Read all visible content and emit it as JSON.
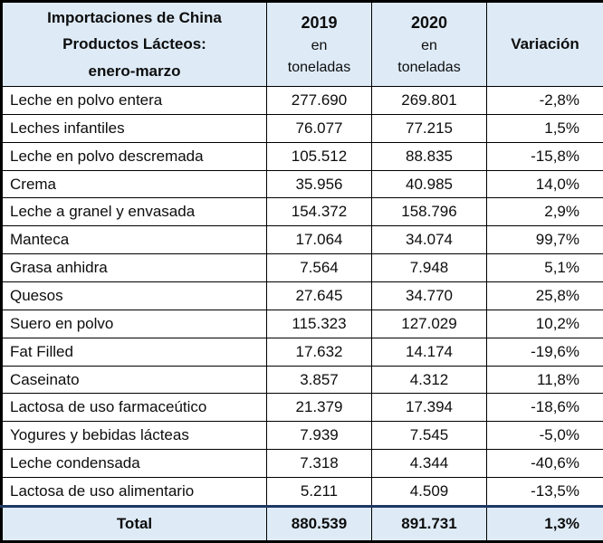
{
  "chart_data": {
    "type": "table",
    "title_lines": [
      "Importaciones de China",
      "Productos Lácteos:",
      "enero-marzo"
    ],
    "columns": [
      {
        "year": "2019",
        "unit_line1": "en",
        "unit_line2": "toneladas"
      },
      {
        "year": "2020",
        "unit_line1": "en",
        "unit_line2": "toneladas"
      },
      {
        "label": "Variación"
      }
    ],
    "rows": [
      {
        "name": "Leche en polvo entera",
        "y2019": "277.690",
        "y2020": "269.801",
        "var": "-2,8%"
      },
      {
        "name": "Leches infantiles",
        "y2019": "76.077",
        "y2020": "77.215",
        "var": "1,5%"
      },
      {
        "name": "Leche en polvo descremada",
        "y2019": "105.512",
        "y2020": "88.835",
        "var": "-15,8%"
      },
      {
        "name": "Crema",
        "y2019": "35.956",
        "y2020": "40.985",
        "var": "14,0%"
      },
      {
        "name": "Leche a granel y envasada",
        "y2019": "154.372",
        "y2020": "158.796",
        "var": "2,9%"
      },
      {
        "name": "Manteca",
        "y2019": "17.064",
        "y2020": "34.074",
        "var": "99,7%"
      },
      {
        "name": "Grasa anhidra",
        "y2019": "7.564",
        "y2020": "7.948",
        "var": "5,1%"
      },
      {
        "name": "Quesos",
        "y2019": "27.645",
        "y2020": "34.770",
        "var": "25,8%"
      },
      {
        "name": "Suero en polvo",
        "y2019": "115.323",
        "y2020": "127.029",
        "var": "10,2%"
      },
      {
        "name": "Fat Filled",
        "y2019": "17.632",
        "y2020": "14.174",
        "var": "-19,6%"
      },
      {
        "name": "Caseinato",
        "y2019": "3.857",
        "y2020": "4.312",
        "var": "11,8%"
      },
      {
        "name": "Lactosa de uso farmaceútico",
        "y2019": "21.379",
        "y2020": "17.394",
        "var": "-18,6%"
      },
      {
        "name": "Yogures y bebidas lácteas",
        "y2019": "7.939",
        "y2020": "7.545",
        "var": "-5,0%"
      },
      {
        "name": "Leche condensada",
        "y2019": "7.318",
        "y2020": "4.344",
        "var": "-40,6%"
      },
      {
        "name": "Lactosa de uso alimentario",
        "y2019": "5.211",
        "y2020": "4.509",
        "var": "-13,5%"
      }
    ],
    "total": {
      "label": "Total",
      "y2019": "880.539",
      "y2020": "891.731",
      "var": "1,3%"
    },
    "colors": {
      "header_bg": "#DEEBF7",
      "border": "#000000",
      "total_rule": "#1F3864",
      "text": "#0d0d0d"
    }
  }
}
